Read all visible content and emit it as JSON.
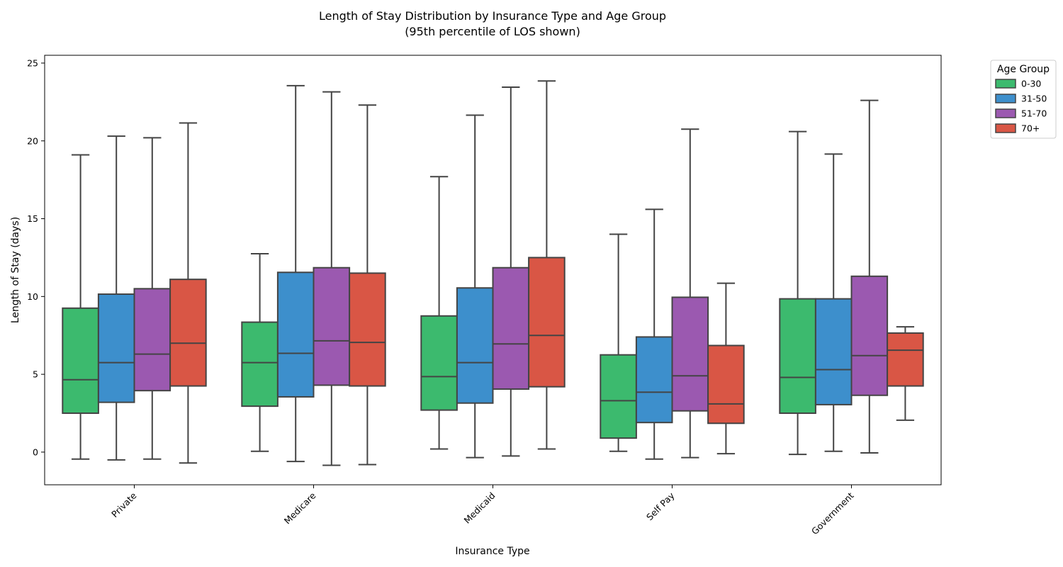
{
  "chart_data": {
    "type": "boxplot",
    "title": "Length of Stay Distribution by Insurance Type and Age Group",
    "subtitle": "(95th percentile of LOS shown)",
    "xlabel": "Insurance Type",
    "ylabel": "Length of Stay (days)",
    "ylim": [
      -2.1,
      25.5
    ],
    "yticks": [
      0,
      5,
      10,
      15,
      20,
      25
    ],
    "grid": false,
    "legend": {
      "title": "Age Group",
      "placement": "outside-top-right"
    },
    "categories": [
      "Private",
      "Medicare",
      "Medicaid",
      "Self Pay",
      "Government"
    ],
    "series": [
      {
        "name": "0-30",
        "color": "#3cba6e",
        "boxes": [
          {
            "whislo": -0.45,
            "q1": 2.5,
            "med": 4.65,
            "q3": 9.25,
            "whishi": 19.1
          },
          {
            "whislo": 0.05,
            "q1": 2.95,
            "med": 5.75,
            "q3": 8.35,
            "whishi": 12.75
          },
          {
            "whislo": 0.2,
            "q1": 2.7,
            "med": 4.85,
            "q3": 8.75,
            "whishi": 17.7
          },
          {
            "whislo": 0.05,
            "q1": 0.9,
            "med": 3.3,
            "q3": 6.25,
            "whishi": 14.0
          },
          {
            "whislo": -0.15,
            "q1": 2.5,
            "med": 4.8,
            "q3": 9.85,
            "whishi": 20.6
          }
        ]
      },
      {
        "name": "31-50",
        "color": "#3d8fcc",
        "boxes": [
          {
            "whislo": -0.5,
            "q1": 3.2,
            "med": 5.75,
            "q3": 10.15,
            "whishi": 20.3
          },
          {
            "whislo": -0.6,
            "q1": 3.55,
            "med": 6.35,
            "q3": 11.55,
            "whishi": 23.55
          },
          {
            "whislo": -0.35,
            "q1": 3.15,
            "med": 5.75,
            "q3": 10.55,
            "whishi": 21.65
          },
          {
            "whislo": -0.45,
            "q1": 1.9,
            "med": 3.85,
            "q3": 7.4,
            "whishi": 15.6
          },
          {
            "whislo": 0.05,
            "q1": 3.05,
            "med": 5.3,
            "q3": 9.85,
            "whishi": 19.15
          }
        ]
      },
      {
        "name": "51-70",
        "color": "#9b59b0",
        "boxes": [
          {
            "whislo": -0.45,
            "q1": 3.95,
            "med": 6.3,
            "q3": 10.5,
            "whishi": 20.2
          },
          {
            "whislo": -0.85,
            "q1": 4.3,
            "med": 7.15,
            "q3": 11.85,
            "whishi": 23.15
          },
          {
            "whislo": -0.25,
            "q1": 4.05,
            "med": 6.95,
            "q3": 11.85,
            "whishi": 23.45
          },
          {
            "whislo": -0.35,
            "q1": 2.65,
            "med": 4.9,
            "q3": 9.95,
            "whishi": 20.75
          },
          {
            "whislo": -0.05,
            "q1": 3.65,
            "med": 6.2,
            "q3": 11.3,
            "whishi": 22.6
          }
        ]
      },
      {
        "name": "70+",
        "color": "#d95645",
        "boxes": [
          {
            "whislo": -0.7,
            "q1": 4.25,
            "med": 7.0,
            "q3": 11.1,
            "whishi": 21.15
          },
          {
            "whislo": -0.8,
            "q1": 4.25,
            "med": 7.05,
            "q3": 11.5,
            "whishi": 22.3
          },
          {
            "whislo": 0.2,
            "q1": 4.2,
            "med": 7.5,
            "q3": 12.5,
            "whishi": 23.85
          },
          {
            "whislo": -0.1,
            "q1": 1.85,
            "med": 3.1,
            "q3": 6.85,
            "whishi": 10.85
          },
          {
            "whislo": 2.05,
            "q1": 4.25,
            "med": 6.55,
            "q3": 7.65,
            "whishi": 8.05
          }
        ]
      }
    ]
  }
}
